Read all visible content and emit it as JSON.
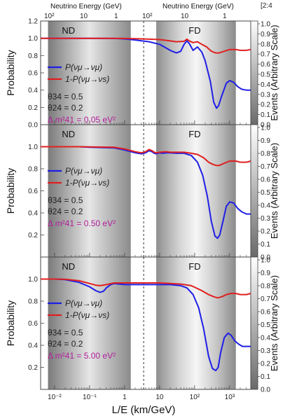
{
  "corner_mark": "[2:4",
  "top_axis": {
    "label_left": "Neutrino Energy (GeV)",
    "label_right": "Neutrino Energy (GeV)",
    "ticks_left": [
      "10²",
      "10",
      "1"
    ],
    "ticks_right": [
      "10²",
      "10",
      "1"
    ]
  },
  "y_left_label": "Probability",
  "y_right_label": "Events (Arbitrary Scale)",
  "x_label": "L/E (km/GeV)",
  "x_tick_labels": [
    "10⁻²",
    "10⁻¹",
    "1",
    "10",
    "10²",
    "10³"
  ],
  "y_left_ticks_top": [
    "0.0",
    "0.2",
    "0.4",
    "0.6",
    "0.8",
    "1.0",
    "1.2"
  ],
  "y_left_ticks": [
    "0.2",
    "0.4",
    "0.6",
    "0.8",
    "1.0"
  ],
  "y_right_ticks": [
    "0.1",
    "0.2",
    "0.3",
    "0.4",
    "0.5",
    "0.6",
    "0.7",
    "0.8",
    "0.9",
    "1.0"
  ],
  "colors": {
    "mumu": "#1f1fe6",
    "mus": "#e02020",
    "dm": "#b0209a"
  },
  "chart_data": [
    {
      "type": "line",
      "xscale": "log",
      "xlim": [
        0.004,
        4000
      ],
      "ylim": [
        0,
        1.2
      ],
      "grid": false,
      "region_labels": [
        "ND",
        "FD"
      ],
      "legend": [
        "P(νμ→νμ)",
        "1-P(νμ→νs)"
      ],
      "params": {
        "theta34": "θ34 = 0.5",
        "theta24": "θ24 = 0.2",
        "dm41": "Δ m²41 = 0.05 eV²"
      },
      "series": [
        {
          "name": "P(νμ→νμ)",
          "x": [
            0.004,
            0.01,
            0.05,
            0.1,
            0.5,
            1,
            2,
            5,
            10,
            20,
            30,
            40,
            50,
            60,
            70,
            90,
            120,
            160,
            200,
            280,
            350,
            420,
            480,
            600,
            800,
            1000,
            1300,
            1700,
            2200,
            3000,
            4000
          ],
          "y": [
            1.0,
            1.0,
            1.0,
            1.0,
            0.998,
            0.993,
            0.98,
            0.96,
            0.93,
            0.86,
            0.83,
            0.85,
            0.93,
            0.97,
            0.94,
            0.86,
            0.9,
            0.84,
            0.74,
            0.5,
            0.26,
            0.19,
            0.22,
            0.34,
            0.48,
            0.51,
            0.49,
            0.44,
            0.41,
            0.4,
            0.4
          ]
        },
        {
          "name": "1-P(νμ→νs)",
          "x": [
            0.004,
            0.01,
            0.05,
            0.1,
            0.5,
            1,
            2,
            5,
            10,
            20,
            30,
            50,
            60,
            70,
            90,
            120,
            160,
            220,
            300,
            400,
            500,
            700,
            1000,
            1500,
            2000,
            3000,
            4000
          ],
          "y": [
            1.0,
            1.0,
            1.0,
            1.0,
            0.999,
            0.998,
            0.995,
            0.99,
            0.985,
            0.97,
            0.96,
            0.965,
            0.99,
            0.97,
            0.95,
            0.96,
            0.93,
            0.9,
            0.85,
            0.83,
            0.83,
            0.85,
            0.87,
            0.87,
            0.86,
            0.86,
            0.87
          ]
        }
      ]
    },
    {
      "type": "line",
      "xscale": "log",
      "xlim": [
        0.004,
        4000
      ],
      "ylim": [
        0,
        1.2
      ],
      "grid": false,
      "region_labels": [
        "ND",
        "FD"
      ],
      "legend": [
        "P(νμ→νμ)",
        "1-P(νμ→νs)"
      ],
      "params": {
        "theta34": "θ34 = 0.5",
        "theta24": "θ24 = 0.2",
        "dm41": "Δ m²41 = 0.50 eV²"
      },
      "series": [
        {
          "name": "P(νμ→νμ)",
          "x": [
            0.004,
            0.01,
            0.05,
            0.1,
            0.5,
            1,
            2,
            3,
            4,
            5,
            6,
            7,
            8,
            10,
            12,
            15,
            20,
            30,
            50,
            80,
            120,
            170,
            230,
            300,
            380,
            450,
            520,
            650,
            800,
            1000,
            1300,
            1700,
            2200,
            3000,
            4000
          ],
          "y": [
            1.0,
            1.0,
            1.0,
            0.995,
            0.99,
            0.97,
            0.945,
            0.935,
            0.945,
            0.965,
            0.955,
            0.94,
            0.935,
            0.945,
            0.94,
            0.945,
            0.945,
            0.94,
            0.94,
            0.92,
            0.86,
            0.74,
            0.55,
            0.32,
            0.19,
            0.17,
            0.2,
            0.33,
            0.46,
            0.5,
            0.49,
            0.44,
            0.41,
            0.39,
            0.39
          ]
        },
        {
          "name": "1-P(νμ→νs)",
          "x": [
            0.004,
            0.01,
            0.05,
            0.1,
            0.5,
            1,
            2,
            3,
            4,
            5,
            6,
            7,
            8,
            10,
            15,
            20,
            30,
            50,
            80,
            120,
            180,
            250,
            330,
            420,
            500,
            700,
            1000,
            1500,
            2000,
            3000,
            4000
          ],
          "y": [
            1.0,
            1.0,
            1.0,
            0.998,
            0.995,
            0.98,
            0.955,
            0.945,
            0.955,
            0.975,
            0.965,
            0.95,
            0.945,
            0.95,
            0.955,
            0.95,
            0.95,
            0.95,
            0.94,
            0.93,
            0.9,
            0.86,
            0.84,
            0.83,
            0.83,
            0.85,
            0.87,
            0.87,
            0.86,
            0.86,
            0.87
          ]
        }
      ]
    },
    {
      "type": "line",
      "xscale": "log",
      "xlim": [
        0.004,
        4000
      ],
      "ylim": [
        0,
        1.2
      ],
      "grid": false,
      "region_labels": [
        "ND",
        "FD"
      ],
      "legend": [
        "P(νμ→νμ)",
        "1-P(νμ→νs)"
      ],
      "params": {
        "theta34": "θ34 = 0.5",
        "theta24": "θ24 = 0.2",
        "dm41": "Δ m²41 = 5.00 eV²"
      },
      "series": [
        {
          "name": "P(νμ→νμ)",
          "x": [
            0.004,
            0.01,
            0.02,
            0.05,
            0.1,
            0.15,
            0.2,
            0.25,
            0.3,
            0.4,
            0.5,
            0.7,
            1,
            2,
            5,
            10,
            20,
            40,
            60,
            90,
            130,
            180,
            250,
            320,
            400,
            470,
            550,
            700,
            900,
            1100,
            1400,
            1800,
            2300,
            3000,
            4000
          ],
          "y": [
            1.0,
            1.0,
            0.995,
            0.97,
            0.93,
            0.895,
            0.88,
            0.89,
            0.92,
            0.95,
            0.96,
            0.955,
            0.95,
            0.95,
            0.95,
            0.95,
            0.95,
            0.94,
            0.92,
            0.86,
            0.74,
            0.55,
            0.3,
            0.19,
            0.17,
            0.2,
            0.33,
            0.47,
            0.51,
            0.49,
            0.44,
            0.41,
            0.39,
            0.39,
            0.39
          ]
        },
        {
          "name": "1-P(νμ→νs)",
          "x": [
            0.004,
            0.01,
            0.02,
            0.05,
            0.1,
            0.15,
            0.2,
            0.3,
            0.5,
            1,
            2,
            5,
            10,
            20,
            40,
            80,
            150,
            250,
            350,
            450,
            600,
            800,
            1100,
            1500,
            2000,
            3000,
            4000
          ],
          "y": [
            1.0,
            1.0,
            0.998,
            0.985,
            0.96,
            0.945,
            0.94,
            0.95,
            0.965,
            0.965,
            0.965,
            0.965,
            0.965,
            0.96,
            0.955,
            0.94,
            0.9,
            0.86,
            0.84,
            0.83,
            0.84,
            0.86,
            0.87,
            0.87,
            0.86,
            0.86,
            0.87
          ]
        }
      ]
    }
  ]
}
